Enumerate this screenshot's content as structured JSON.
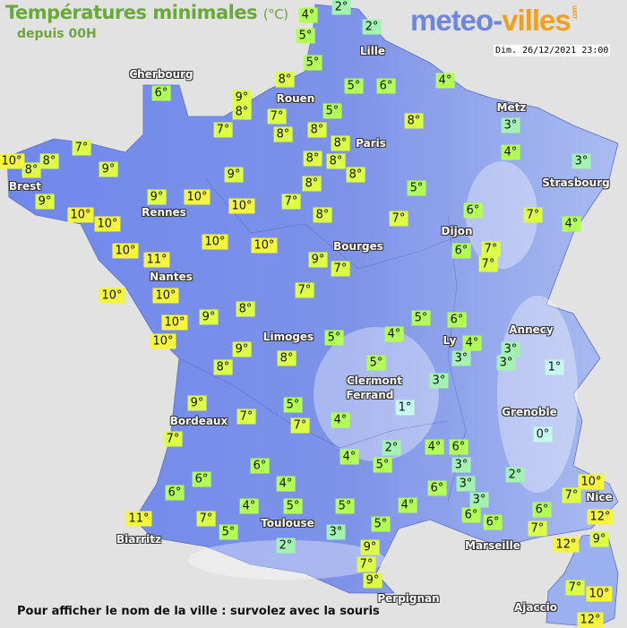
{
  "header": {
    "title": "Températures minimales",
    "unit": "(°C)",
    "subtitle": "depuis 00H",
    "logo_part1": "meteo-",
    "logo_part2": "villes",
    "logo_suffix": ".com",
    "datetime": "Dim. 26/12/2021 23:00"
  },
  "footer": {
    "hint": "Pour afficher le nom de la ville : survolez avec la souris"
  },
  "colors": {
    "land": "#7b8fe8",
    "sea": "#e2e2e2",
    "warm": "#f5f53a",
    "mild": "#ddff44",
    "cool": "#b2ff55",
    "cold": "#a4f2b2",
    "very_cold": "#c6f8ee"
  },
  "cities": [
    "Lille",
    "Cherbourg",
    "Rouen",
    "Metz",
    "Paris",
    "Brest",
    "Strasbourg",
    "Rennes",
    "Dijon",
    "Bourges",
    "Nantes",
    "Annecy",
    "Limoges",
    "Ly",
    "Clermont",
    "Ferrand",
    "Grenoble",
    "Bordeaux",
    "Nice",
    "Toulouse",
    "Biarritz",
    "Marseille",
    "Perpignan",
    "Ajaccio"
  ],
  "temperatures": [
    "4°",
    "2°",
    "2°",
    "5°",
    "5°",
    "8°",
    "5°",
    "6°",
    "4°",
    "6°",
    "9°",
    "8°",
    "7°",
    "5°",
    "7°",
    "8°",
    "8°",
    "8°",
    "3°",
    "8°",
    "7°",
    "10°",
    "8°",
    "8°",
    "9°",
    "4°",
    "8°",
    "8°",
    "8°",
    "3°",
    "9°",
    "8°",
    "5°",
    "9°",
    "10°",
    "9°",
    "10°",
    "7°",
    "10°",
    "10°",
    "8°",
    "7°",
    "6°",
    "7°",
    "4°",
    "10°",
    "10°",
    "10°",
    "11°",
    "6°",
    "7°",
    "9°",
    "7°",
    "7°",
    "10°",
    "7°",
    "10°",
    "9°",
    "8°",
    "10°",
    "5°",
    "6°",
    "10°",
    "5°",
    "4°",
    "4°",
    "3°",
    "9°",
    "3°",
    "1°",
    "8°",
    "8°",
    "5°",
    "3°",
    "3°",
    "9°",
    "5°",
    "1°",
    "7°",
    "7°",
    "4°",
    "0°",
    "7°",
    "4°",
    "2°",
    "4°",
    "6°",
    "5°",
    "3°",
    "2°",
    "6°",
    "6°",
    "4°",
    "3°",
    "10°",
    "6°",
    "6°",
    "7°",
    "4°",
    "5°",
    "5°",
    "4°",
    "3°",
    "6°",
    "12°",
    "11°",
    "7°",
    "6°",
    "6°",
    "5°",
    "3°",
    "5°",
    "7°",
    "12°",
    "9°",
    "2°",
    "9°",
    "7°",
    "9°",
    "7°",
    "10°",
    "12°"
  ]
}
